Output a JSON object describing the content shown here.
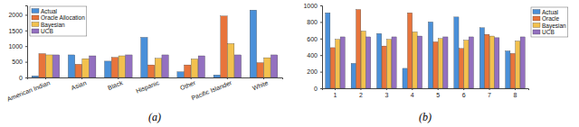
{
  "chart_data": [
    {
      "type": "bar",
      "title": "(a)",
      "categories": [
        "American Indian",
        "Asian",
        "Black",
        "Hispanic",
        "Other",
        "Pacific Islander",
        "White"
      ],
      "series": [
        {
          "name": "Actual",
          "color": "#4a90d9",
          "values": [
            50,
            720,
            520,
            1280,
            180,
            80,
            2150
          ]
        },
        {
          "name": "Oracle Allocation",
          "color": "#e8743b",
          "values": [
            760,
            420,
            640,
            400,
            400,
            1960,
            470
          ]
        },
        {
          "name": "Bayesian",
          "color": "#f2c14e",
          "values": [
            720,
            600,
            690,
            610,
            590,
            1080,
            630
          ]
        },
        {
          "name": "UCB",
          "color": "#9370c0",
          "values": [
            720,
            690,
            720,
            720,
            690,
            720,
            720
          ]
        }
      ],
      "ylim": [
        0,
        2300
      ],
      "yticks": [
        0,
        500,
        1000,
        1500,
        2000
      ],
      "legend": "upper left"
    },
    {
      "type": "bar",
      "title": "(b)",
      "categories": [
        "1",
        "2",
        "3",
        "4",
        "5",
        "6",
        "7",
        "8"
      ],
      "series": [
        {
          "name": "Actual",
          "color": "#4a90d9",
          "values": [
            910,
            300,
            660,
            240,
            800,
            860,
            730,
            450
          ]
        },
        {
          "name": "Oracle",
          "color": "#e8743b",
          "values": [
            490,
            950,
            510,
            910,
            560,
            480,
            650,
            420
          ]
        },
        {
          "name": "Bayesian",
          "color": "#f2c14e",
          "values": [
            590,
            690,
            590,
            680,
            600,
            580,
            630,
            570
          ]
        },
        {
          "name": "UCB",
          "color": "#9370c0",
          "values": [
            620,
            620,
            620,
            630,
            620,
            620,
            610,
            620
          ]
        }
      ],
      "ylim": [
        0,
        1000
      ],
      "yticks": [
        0,
        200,
        400,
        600,
        800,
        1000
      ],
      "legend": "right"
    }
  ]
}
